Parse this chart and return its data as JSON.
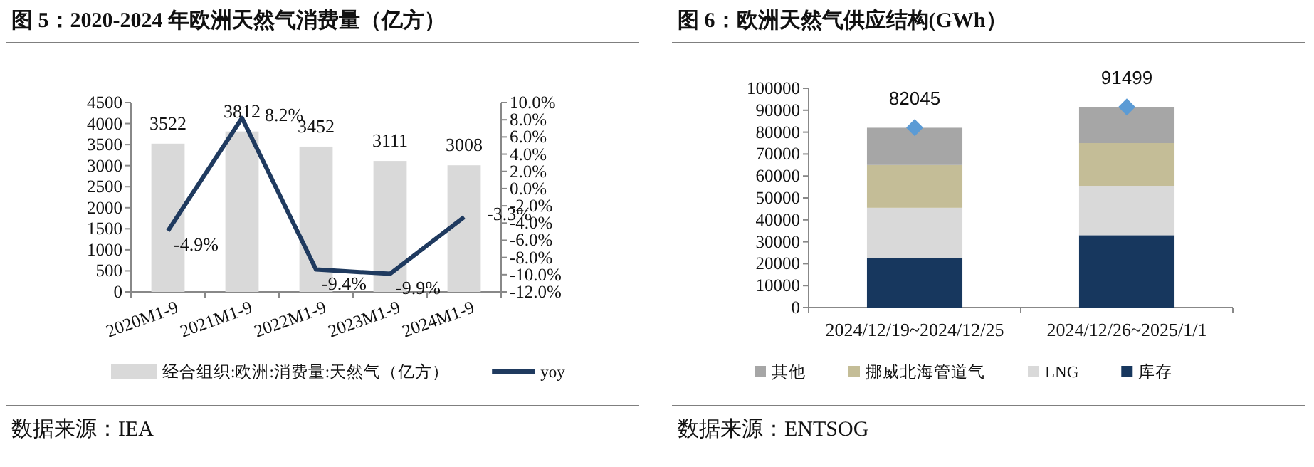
{
  "chart_data": [
    {
      "type": "bar",
      "title": "图 5：2020-2024 年欧洲天然气消费量（亿方）",
      "annotations": [
        "数据来源：IEA"
      ],
      "categories": [
        "2020M1-9",
        "2021M1-9",
        "2022M1-9",
        "2023M1-9",
        "2024M1-9"
      ],
      "series": [
        {
          "name": "经合组织:欧洲:消费量:天然气（亿方）",
          "color": "#d9d9d9",
          "values": [
            3522,
            3812,
            3452,
            3111,
            3008
          ],
          "value_labels": [
            "3522",
            "3812",
            "3452",
            "3111",
            "3008"
          ]
        },
        {
          "name": "yoy",
          "type": "line",
          "axis": "y2",
          "color": "#1f3a5f",
          "values": [
            -4.9,
            8.2,
            -9.4,
            -9.9,
            -3.3
          ],
          "value_labels": [
            "-4.9%",
            "8.2%",
            "-9.4%",
            "-9.9%",
            "-3.3%"
          ]
        }
      ],
      "ylim": [
        0,
        4500
      ],
      "yticks": [
        0,
        500,
        1000,
        1500,
        2000,
        2500,
        3000,
        3500,
        4000,
        4500
      ],
      "y2lim": [
        -12,
        10
      ],
      "y2ticks": [
        {
          "value": -12,
          "label": "-12.0%"
        },
        {
          "value": -10,
          "label": "-10.0%"
        },
        {
          "value": -8,
          "label": "-8.0%"
        },
        {
          "value": -6,
          "label": "-6.0%"
        },
        {
          "value": -4,
          "label": "-4.0%"
        },
        {
          "value": -2,
          "label": "-2.0%"
        },
        {
          "value": 0,
          "label": "0.0%"
        },
        {
          "value": 2,
          "label": "2.0%"
        },
        {
          "value": 4,
          "label": "4.0%"
        },
        {
          "value": 6,
          "label": "6.0%"
        },
        {
          "value": 8,
          "label": "8.0%"
        },
        {
          "value": 10,
          "label": "10.0%"
        }
      ],
      "grid": false,
      "legend": "bottom"
    },
    {
      "type": "bar",
      "title": "图 6：欧洲天然气供应结构(GWh）",
      "annotations": [
        "数据来源：ENTSOG"
      ],
      "stacked": true,
      "categories": [
        "2024/12/19~2024/12/25",
        "2024/12/26~2025/1/1"
      ],
      "series": [
        {
          "name": "库存",
          "color": "#17375e",
          "values": [
            22500,
            33000
          ]
        },
        {
          "name": "LNG",
          "color": "#d9d9d9",
          "values": [
            23000,
            22500
          ]
        },
        {
          "name": "挪威北海管道气",
          "color": "#c4bd97",
          "values": [
            19500,
            19500
          ]
        },
        {
          "name": "其他",
          "color": "#a6a6a6",
          "values": [
            17000,
            16500
          ]
        },
        {
          "type": "scatter",
          "marker": "diamond",
          "color": "#5b9bd5",
          "x": [
            "2024/12/19~2024/12/25",
            "2024/12/26~2025/1/1"
          ],
          "values": [
            82045,
            91499
          ],
          "value_labels": [
            "82045",
            "91499"
          ]
        }
      ],
      "ylim": [
        0,
        100000
      ],
      "yticks": [
        0,
        10000,
        20000,
        30000,
        40000,
        50000,
        60000,
        70000,
        80000,
        90000,
        100000
      ],
      "grid": false,
      "legend": "bottom"
    }
  ]
}
